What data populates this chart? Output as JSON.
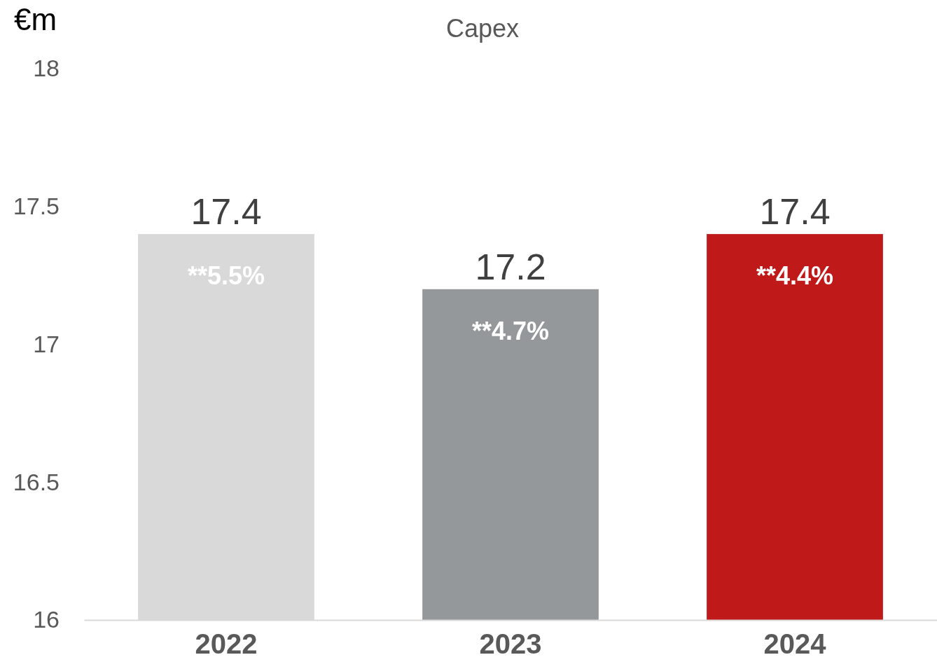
{
  "chart_data": {
    "type": "bar",
    "title": "Capex",
    "ylabel": "€m",
    "categories": [
      "2022",
      "2023",
      "2024"
    ],
    "values": [
      17.4,
      17.2,
      17.4
    ],
    "colors": [
      "#d9d9d9",
      "#95989b",
      "#c0191a"
    ],
    "ylim": [
      16,
      18
    ],
    "yticks": [
      16,
      16.5,
      17,
      17.5,
      18
    ],
    "grid": false,
    "data_labels": true,
    "annotations": [
      "**5.5%",
      "**4.7%",
      "**4.4%"
    ]
  }
}
